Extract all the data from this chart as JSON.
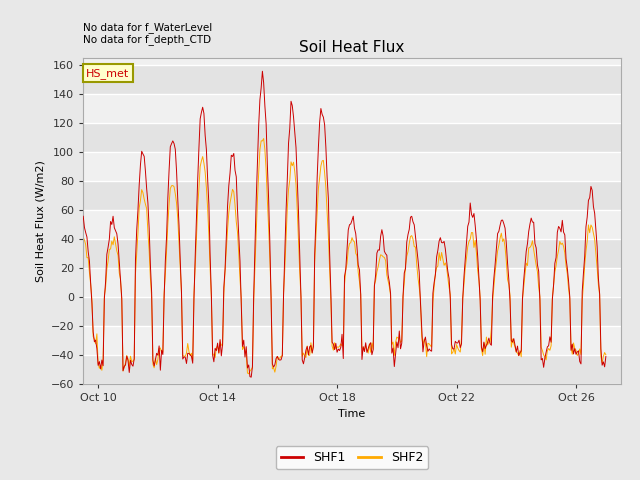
{
  "title": "Soil Heat Flux",
  "ylabel": "Soil Heat Flux (W/m2)",
  "xlabel": "Time",
  "ylim": [
    -60,
    165
  ],
  "yticks": [
    -60,
    -40,
    -20,
    0,
    20,
    40,
    60,
    80,
    100,
    120,
    140,
    160
  ],
  "annotation_lines": [
    "No data for f_WaterLevel",
    "No data for f_depth_CTD"
  ],
  "hs_met_label": "HS_met",
  "legend_entries": [
    "SHF1",
    "SHF2"
  ],
  "shf1_color": "#cc0000",
  "shf2_color": "#ffaa00",
  "fig_bg_color": "#e8e8e8",
  "plot_bg_color": "#f0f0f0",
  "grid_color": "#ffffff",
  "x_tick_labels": [
    "Oct 10",
    "Oct 14",
    "Oct 18",
    "Oct 22",
    "Oct 26"
  ],
  "x_tick_days": [
    1,
    5,
    9,
    13,
    17
  ],
  "xlim": [
    0.5,
    18.5
  ],
  "title_fontsize": 11,
  "label_fontsize": 8,
  "tick_fontsize": 8
}
